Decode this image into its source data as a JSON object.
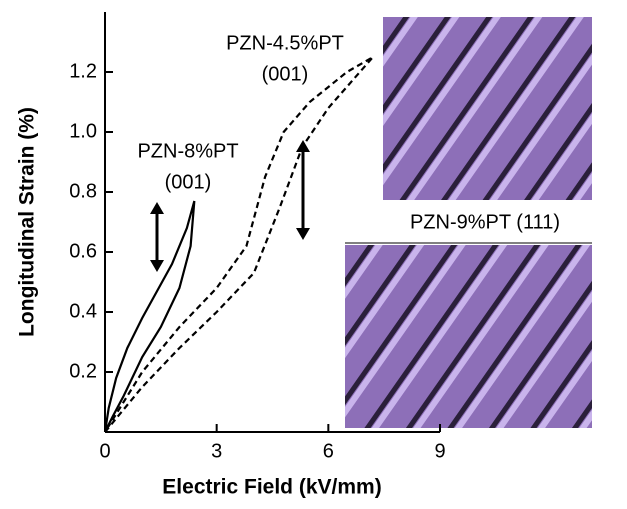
{
  "chart_data": {
    "type": "line",
    "xlabel": "Electric Field (kV/mm)",
    "ylabel": "Longitudinal Strain (%)",
    "xlim": [
      0,
      9
    ],
    "xticks": [
      0,
      3,
      6,
      9
    ],
    "ylim": [
      0,
      1.4
    ],
    "yticks": [
      0.2,
      0.4,
      0.6,
      0.8,
      {
        "value": 1,
        "label": "1.0"
      },
      1.2
    ],
    "series": [
      {
        "name": "PZN-8%PT",
        "orientation": "(001)",
        "color": "#000000",
        "dash": false,
        "x": [
          0,
          0.2,
          0.5,
          1.0,
          1.5,
          2.0,
          2.3,
          2.4,
          2.2,
          1.8,
          1.4,
          1.0,
          0.6,
          0.3,
          0.1,
          0
        ],
        "y": [
          0,
          0.05,
          0.12,
          0.25,
          0.35,
          0.48,
          0.62,
          0.77,
          0.68,
          0.56,
          0.47,
          0.38,
          0.28,
          0.18,
          0.08,
          0
        ]
      },
      {
        "name": "PZN-4.5%PT",
        "orientation": "(001)",
        "color": "#000000",
        "dash": true,
        "x": [
          0,
          1,
          2,
          3,
          4,
          4.7,
          5.3,
          6,
          7.2,
          6.5,
          5.5,
          4.8,
          4.3,
          3.8,
          3,
          2,
          1,
          0
        ],
        "y": [
          0,
          0.15,
          0.28,
          0.4,
          0.53,
          0.75,
          0.95,
          1.08,
          1.25,
          1.2,
          1.1,
          1.0,
          0.85,
          0.62,
          0.48,
          0.35,
          0.2,
          0
        ]
      }
    ],
    "annotations": [
      "PZN-9%PT (111)"
    ]
  }
}
